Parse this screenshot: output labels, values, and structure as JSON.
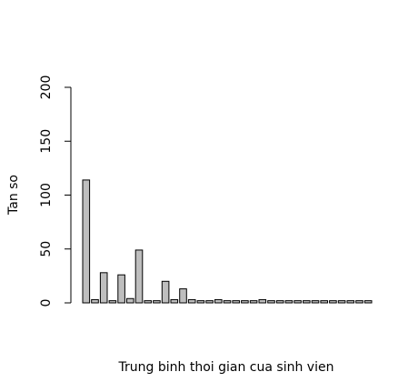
{
  "chart_data": {
    "type": "bar",
    "title": "",
    "xlabel": "Trung binh thoi gian cua sinh vien",
    "ylabel": "Tan so",
    "ylim": [
      0,
      200
    ],
    "yticks": [
      0,
      50,
      100,
      150,
      200
    ],
    "grid": false,
    "legend": "none",
    "values": [
      114,
      3,
      28,
      2,
      26,
      4,
      49,
      2,
      2,
      20,
      3,
      13,
      3,
      2,
      2,
      3,
      2,
      2,
      2,
      2,
      3,
      2,
      2,
      2,
      2,
      2,
      2,
      2,
      2,
      2,
      2,
      2,
      2
    ],
    "bar_color": "#bebebe",
    "border_color": "#000000"
  }
}
